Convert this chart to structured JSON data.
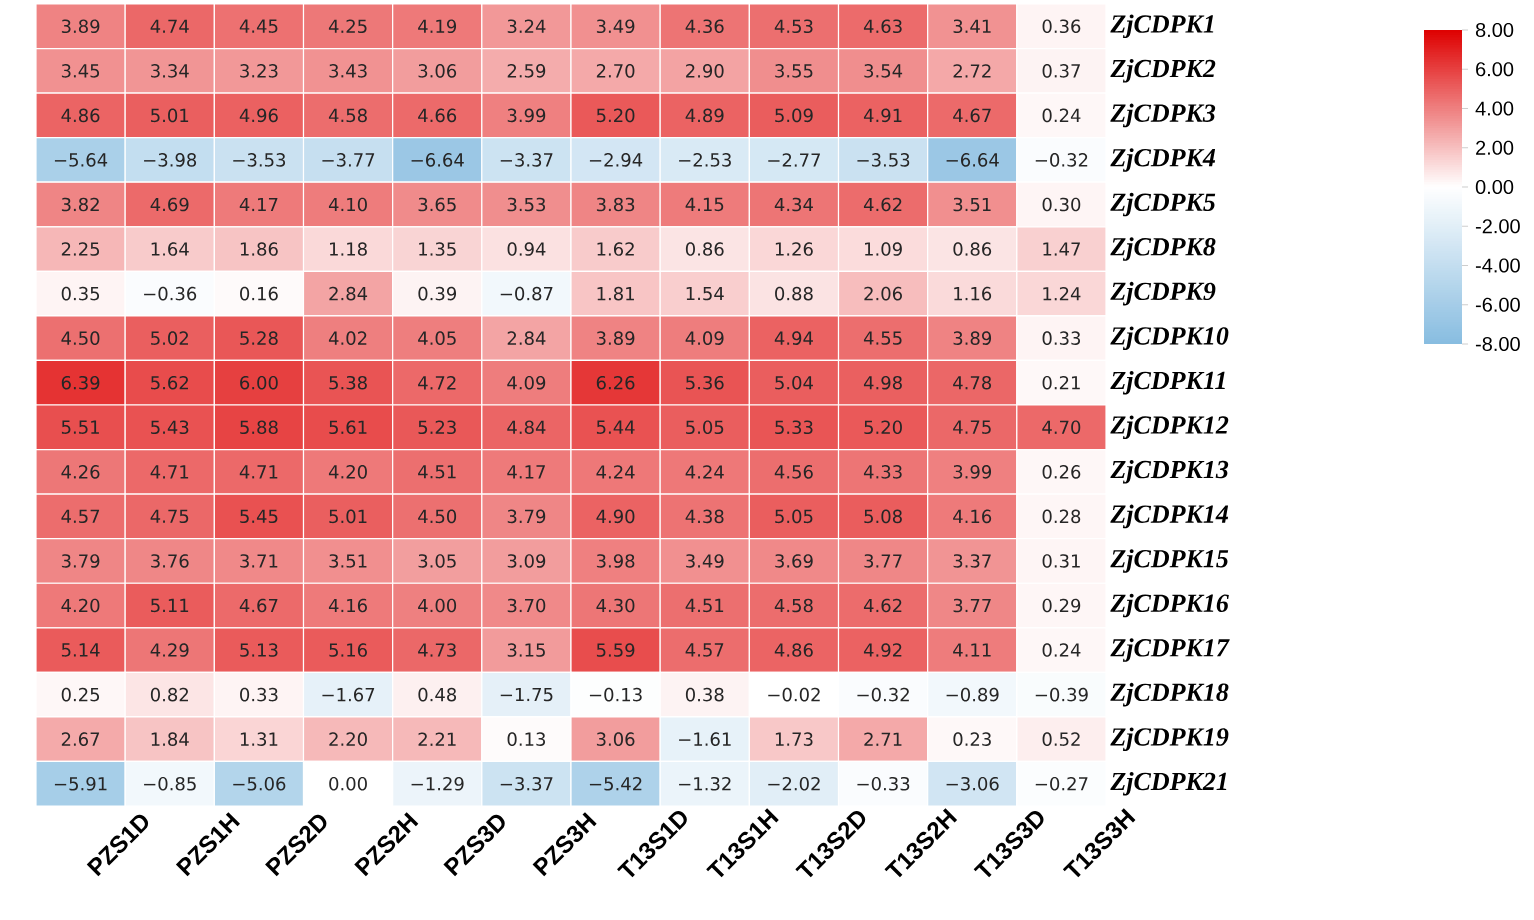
{
  "chart_data": {
    "type": "heatmap",
    "categories": [
      "PZS1D",
      "PZS1H",
      "PZS2D",
      "PZS2H",
      "PZS3D",
      "PZS3H",
      "T13S1D",
      "T13S1H",
      "T13S2D",
      "T13S2H",
      "T13S3D",
      "T13S3H"
    ],
    "y_categories": [
      "ZjCDPK1",
      "ZjCDPK2",
      "ZjCDPK3",
      "ZjCDPK4",
      "ZjCDPK5",
      "ZjCDPK8",
      "ZjCDPK9",
      "ZjCDPK10",
      "ZjCDPK11",
      "ZjCDPK12",
      "ZjCDPK13",
      "ZjCDPK14",
      "ZjCDPK15",
      "ZjCDPK16",
      "ZjCDPK17",
      "ZjCDPK18",
      "ZjCDPK19",
      "ZjCDPK21"
    ],
    "cells": [
      [
        3.89,
        4.74,
        4.45,
        4.25,
        4.19,
        3.24,
        3.49,
        4.36,
        4.53,
        4.63,
        3.41,
        0.36
      ],
      [
        3.45,
        3.34,
        3.23,
        3.43,
        3.06,
        2.59,
        2.7,
        2.9,
        3.55,
        3.54,
        2.72,
        0.37
      ],
      [
        4.86,
        5.01,
        4.96,
        4.58,
        4.66,
        3.99,
        5.2,
        4.89,
        5.09,
        4.91,
        4.67,
        0.24
      ],
      [
        -5.64,
        -3.98,
        -3.53,
        -3.77,
        -6.64,
        -3.37,
        -2.94,
        -2.53,
        -2.77,
        -3.53,
        -6.64,
        -0.32
      ],
      [
        3.82,
        4.69,
        4.17,
        4.1,
        3.65,
        3.53,
        3.83,
        4.15,
        4.34,
        4.62,
        3.51,
        0.3
      ],
      [
        2.25,
        1.64,
        1.86,
        1.18,
        1.35,
        0.94,
        1.62,
        0.86,
        1.26,
        1.09,
        0.86,
        1.47
      ],
      [
        0.35,
        -0.36,
        0.16,
        2.84,
        0.39,
        -0.87,
        1.81,
        1.54,
        0.88,
        2.06,
        1.16,
        1.24
      ],
      [
        4.5,
        5.02,
        5.28,
        4.02,
        4.05,
        2.84,
        3.89,
        4.09,
        4.94,
        4.55,
        3.89,
        0.33
      ],
      [
        6.39,
        5.62,
        6.0,
        5.38,
        4.72,
        4.09,
        6.26,
        5.36,
        5.04,
        4.98,
        4.78,
        0.21
      ],
      [
        5.51,
        5.43,
        5.88,
        5.61,
        5.23,
        4.84,
        5.44,
        5.05,
        5.33,
        5.2,
        4.75,
        4.7
      ],
      [
        4.26,
        4.71,
        4.71,
        4.2,
        4.51,
        4.17,
        4.24,
        4.24,
        4.56,
        4.33,
        3.99,
        0.26
      ],
      [
        4.57,
        4.75,
        5.45,
        5.01,
        4.5,
        3.79,
        4.9,
        4.38,
        5.05,
        5.08,
        4.16,
        0.28
      ],
      [
        3.79,
        3.76,
        3.71,
        3.51,
        3.05,
        3.09,
        3.98,
        3.49,
        3.69,
        3.77,
        3.37,
        0.31
      ],
      [
        4.2,
        5.11,
        4.67,
        4.16,
        4.0,
        3.7,
        4.3,
        4.51,
        4.58,
        4.62,
        3.77,
        0.29
      ],
      [
        5.14,
        4.29,
        5.13,
        5.16,
        4.73,
        3.15,
        5.59,
        4.57,
        4.86,
        4.92,
        4.11,
        0.24
      ],
      [
        0.25,
        0.82,
        0.33,
        -1.67,
        0.48,
        -1.75,
        -0.13,
        0.38,
        -0.02,
        -0.32,
        -0.89,
        -0.39
      ],
      [
        2.67,
        1.84,
        1.31,
        2.2,
        2.21,
        0.13,
        3.06,
        -1.61,
        1.73,
        2.71,
        0.23,
        0.52
      ],
      [
        -5.91,
        -0.85,
        -5.06,
        0.0,
        -1.29,
        -3.37,
        -5.42,
        -1.32,
        -2.02,
        -0.33,
        -3.06,
        -0.27
      ]
    ],
    "cell_labels": [
      [
        "3.89",
        "4.74",
        "4.45",
        "4.25",
        "4.19",
        "3.24",
        "3.49",
        "4.36",
        "4.53",
        "4.63",
        "3.41",
        "0.36"
      ],
      [
        "3.45",
        "3.34",
        "3.23",
        "3.43",
        "3.06",
        "2.59",
        "2.70",
        "2.90",
        "3.55",
        "3.54",
        "2.72",
        "0.37"
      ],
      [
        "4.86",
        "5.01",
        "4.96",
        "4.58",
        "4.66",
        "3.99",
        "5.20",
        "4.89",
        "5.09",
        "4.91",
        "4.67",
        "0.24"
      ],
      [
        "−5.64",
        "−3.98",
        "−3.53",
        "−3.77",
        "−6.64",
        "−3.37",
        "−2.94",
        "−2.53",
        "−2.77",
        "−3.53",
        "−6.64",
        "−0.32"
      ],
      [
        "3.82",
        "4.69",
        "4.17",
        "4.10",
        "3.65",
        "3.53",
        "3.83",
        "4.15",
        "4.34",
        "4.62",
        "3.51",
        "0.30"
      ],
      [
        "2.25",
        "1.64",
        "1.86",
        "1.18",
        "1.35",
        "0.94",
        "1.62",
        "0.86",
        "1.26",
        "1.09",
        "0.86",
        "1.47"
      ],
      [
        "0.35",
        "−0.36",
        "0.16",
        "2.84",
        "0.39",
        "−0.87",
        "1.81",
        "1.54",
        "0.88",
        "2.06",
        "1.16",
        "1.24"
      ],
      [
        "4.50",
        "5.02",
        "5.28",
        "4.02",
        "4.05",
        "2.84",
        "3.89",
        "4.09",
        "4.94",
        "4.55",
        "3.89",
        "0.33"
      ],
      [
        "6.39",
        "5.62",
        "6.00",
        "5.38",
        "4.72",
        "4.09",
        "6.26",
        "5.36",
        "5.04",
        "4.98",
        "4.78",
        "0.21"
      ],
      [
        "5.51",
        "5.43",
        "5.88",
        "5.61",
        "5.23",
        "4.84",
        "5.44",
        "5.05",
        "5.33",
        "5.20",
        "4.75",
        "4.70"
      ],
      [
        "4.26",
        "4.71",
        "4.71",
        "4.20",
        "4.51",
        "4.17",
        "4.24",
        "4.24",
        "4.56",
        "4.33",
        "3.99",
        "0.26"
      ],
      [
        "4.57",
        "4.75",
        "5.45",
        "5.01",
        "4.50",
        "3.79",
        "4.90",
        "4.38",
        "5.05",
        "5.08",
        "4.16",
        "0.28"
      ],
      [
        "3.79",
        "3.76",
        "3.71",
        "3.51",
        "3.05",
        "3.09",
        "3.98",
        "3.49",
        "3.69",
        "3.77",
        "3.37",
        "0.31"
      ],
      [
        "4.20",
        "5.11",
        "4.67",
        "4.16",
        "4.00",
        "3.70",
        "4.30",
        "4.51",
        "4.58",
        "4.62",
        "3.77",
        "0.29"
      ],
      [
        "5.14",
        "4.29",
        "5.13",
        "5.16",
        "4.73",
        "3.15",
        "5.59",
        "4.57",
        "4.86",
        "4.92",
        "4.11",
        "0.24"
      ],
      [
        "0.25",
        "0.82",
        "0.33",
        "−1.67",
        "0.48",
        "−1.75",
        "−0.13",
        "0.38",
        "−0.02",
        "−0.32",
        "−0.89",
        "−0.39"
      ],
      [
        "2.67",
        "1.84",
        "1.31",
        "2.20",
        "2.21",
        "0.13",
        "3.06",
        "−1.61",
        "1.73",
        "2.71",
        "0.23",
        "0.52"
      ],
      [
        "−5.91",
        "−0.85",
        "−5.06",
        "0.00",
        "−1.29",
        "−3.37",
        "−5.42",
        "−1.32",
        "−2.02",
        "−0.33",
        "−3.06",
        "−0.27"
      ]
    ],
    "clim": [
      -8,
      8
    ],
    "cticks": [
      {
        "value": 8,
        "label": "8.00"
      },
      {
        "value": 6,
        "label": "6.00"
      },
      {
        "value": 4,
        "label": "4.00"
      },
      {
        "value": 2,
        "label": "2.00"
      },
      {
        "value": 0,
        "label": "0.00"
      },
      {
        "value": -2,
        "label": "-2.00"
      },
      {
        "value": -4,
        "label": "-4.00"
      },
      {
        "value": -6,
        "label": "-6.00"
      },
      {
        "value": -8,
        "label": "-8.00"
      }
    ]
  }
}
